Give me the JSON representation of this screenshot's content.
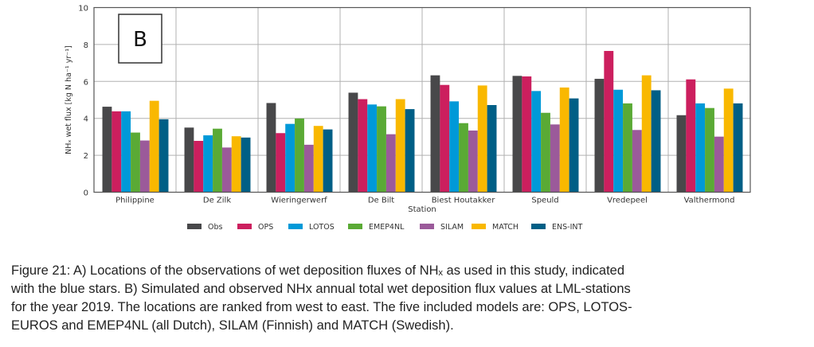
{
  "chart_data": {
    "type": "bar",
    "panel_label": "B",
    "xlabel": "Station",
    "ylabel": "NHₓ wet flux [kg N ha⁻¹ yr⁻¹]",
    "ylim": [
      0,
      10
    ],
    "yticks": [
      "0",
      "2",
      "4",
      "6",
      "8",
      "10"
    ],
    "grid": true,
    "legend_position": "bottom",
    "categories": [
      "Philippine",
      "De Zilk",
      "Wieringerwerf",
      "De Bilt",
      "Biest Houtakker",
      "Speuld",
      "Vredepeel",
      "Valthermond"
    ],
    "series": [
      {
        "name": "Obs",
        "color": "#48484a",
        "values": [
          4.63,
          3.5,
          4.83,
          5.39,
          6.33,
          6.3,
          6.14,
          4.17
        ]
      },
      {
        "name": "OPS",
        "color": "#cc1f5e",
        "values": [
          4.38,
          2.78,
          3.2,
          5.04,
          5.81,
          6.27,
          7.65,
          6.11
        ]
      },
      {
        "name": "LOTOS",
        "color": "#0099d8",
        "values": [
          4.38,
          3.08,
          3.7,
          4.75,
          4.92,
          5.48,
          5.55,
          4.81
        ]
      },
      {
        "name": "EMEP4NL",
        "color": "#5aaa35",
        "values": [
          3.23,
          3.44,
          3.99,
          4.65,
          3.74,
          4.3,
          4.81,
          4.56
        ]
      },
      {
        "name": "SILAM",
        "color": "#9b5a9a",
        "values": [
          2.8,
          2.42,
          2.57,
          3.14,
          3.34,
          3.67,
          3.37,
          3.01
        ]
      },
      {
        "name": "MATCH",
        "color": "#f9b800",
        "values": [
          4.95,
          3.03,
          3.59,
          5.04,
          5.78,
          5.67,
          6.33,
          5.61
        ]
      },
      {
        "name": "ENS-INT",
        "color": "#005f86",
        "values": [
          3.95,
          2.96,
          3.4,
          4.5,
          4.72,
          5.08,
          5.52,
          4.81
        ]
      }
    ]
  },
  "caption": {
    "lines": [
      "Figure 21: A) Locations of the observations of wet deposition fluxes of NHₓ as used in this study, indicated",
      "with the blue stars. B) Simulated and observed NHx annual total wet deposition flux values at LML-stations",
      "for the year 2019. The locations are ranked from west to east. The five included models are: OPS, LOTOS-",
      "EUROS and EMEP4NL (all Dutch), SILAM (Finnish) and MATCH (Swedish)."
    ]
  }
}
